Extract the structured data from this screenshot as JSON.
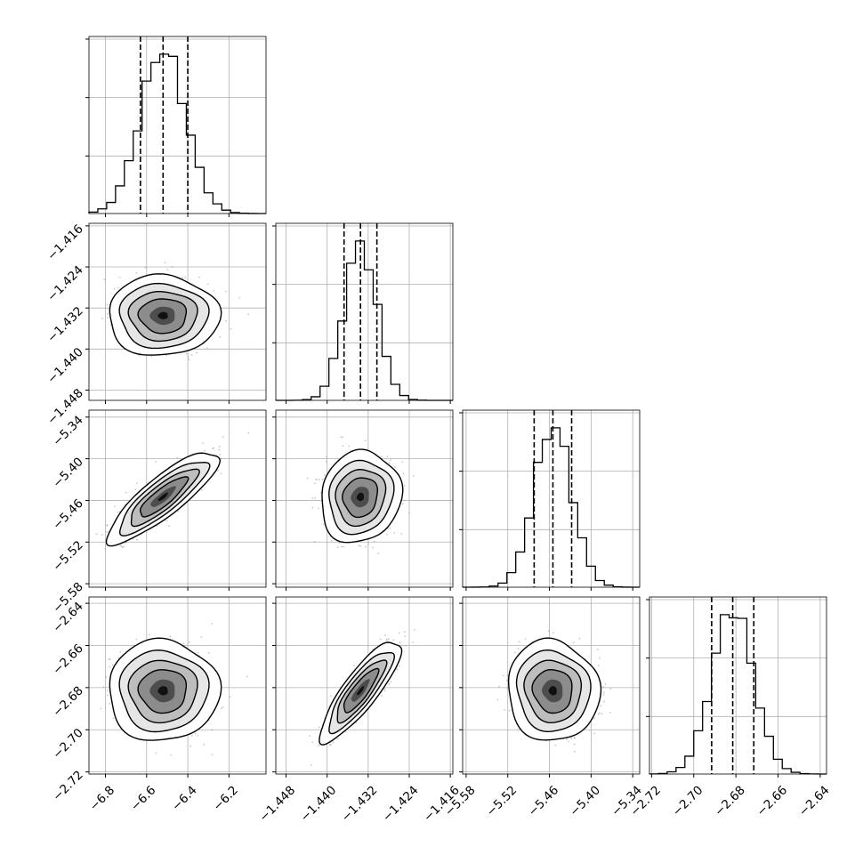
{
  "chart_data": {
    "type": "corner",
    "parameters": [
      {
        "index": 0,
        "range": [
          -6.88,
          -6.02
        ],
        "ticks": [
          "−6.8",
          "−6.6",
          "−6.4",
          "−6.2"
        ],
        "tick_values": [
          -6.8,
          -6.6,
          -6.4,
          -6.2
        ],
        "mean": -6.52,
        "sd": 0.11,
        "quantiles": [
          -6.63,
          -6.52,
          -6.4
        ]
      },
      {
        "index": 1,
        "range": [
          -1.45,
          -1.4155
        ],
        "ticks": [
          "−1.448",
          "−1.440",
          "−1.432",
          "−1.424",
          "−1.416"
        ],
        "tick_values": [
          -1.448,
          -1.44,
          -1.432,
          -1.424,
          -1.416
        ],
        "mean": -1.4335,
        "sd": 0.0032,
        "quantiles": [
          -1.4367,
          -1.4335,
          -1.4303
        ]
      },
      {
        "index": 2,
        "range": [
          -5.585,
          -5.33
        ],
        "ticks": [
          "−5.58",
          "−5.52",
          "−5.46",
          "−5.40",
          "−5.34"
        ],
        "tick_values": [
          -5.58,
          -5.52,
          -5.46,
          -5.4,
          -5.34
        ],
        "mean": -5.455,
        "sd": 0.027,
        "quantiles": [
          -5.482,
          -5.455,
          -5.428
        ]
      },
      {
        "index": 3,
        "range": [
          -2.721,
          -2.637
        ],
        "ticks": [
          "−2.72",
          "−2.70",
          "−2.68",
          "−2.66",
          "−2.64"
        ],
        "tick_values": [
          -2.72,
          -2.7,
          -2.68,
          -2.66,
          -2.64
        ],
        "mean": -2.6815,
        "sd": 0.0098,
        "quantiles": [
          -2.6915,
          -2.6815,
          -2.6715
        ]
      }
    ],
    "correlations": [
      {
        "pair": [
          1,
          0
        ],
        "rho": 0.0
      },
      {
        "pair": [
          2,
          0
        ],
        "rho": 0.85
      },
      {
        "pair": [
          2,
          1
        ],
        "rho": 0.1
      },
      {
        "pair": [
          3,
          0
        ],
        "rho": 0.0
      },
      {
        "pair": [
          3,
          1
        ],
        "rho": 0.85
      },
      {
        "pair": [
          3,
          2
        ],
        "rho": -0.05
      }
    ],
    "histogram_bins": 20,
    "grid": true,
    "contour_levels": 4,
    "style": {
      "line": "#000000",
      "grid": "#b0b0b0",
      "scatter": "#9a9a9a"
    }
  }
}
